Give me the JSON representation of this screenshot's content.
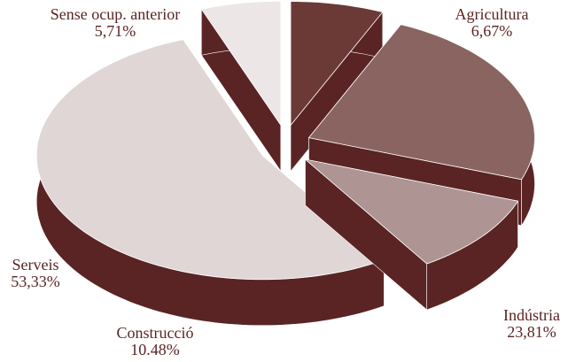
{
  "chart_data": {
    "type": "pie3d",
    "categories": [
      "Agricultura",
      "Indústria",
      "Construcció",
      "Serveis",
      "Sense ocup. anterior"
    ],
    "values": [
      6.67,
      23.81,
      10.48,
      53.33,
      5.71
    ],
    "value_labels": [
      "6,67%",
      "23,81%",
      "10.48%",
      "53,33%",
      "5,71%"
    ],
    "colors": [
      "#6b3a37",
      "#8a6461",
      "#ae9493",
      "#e0d6d6",
      "#ede6e6"
    ],
    "side_color": "#5a2424"
  }
}
